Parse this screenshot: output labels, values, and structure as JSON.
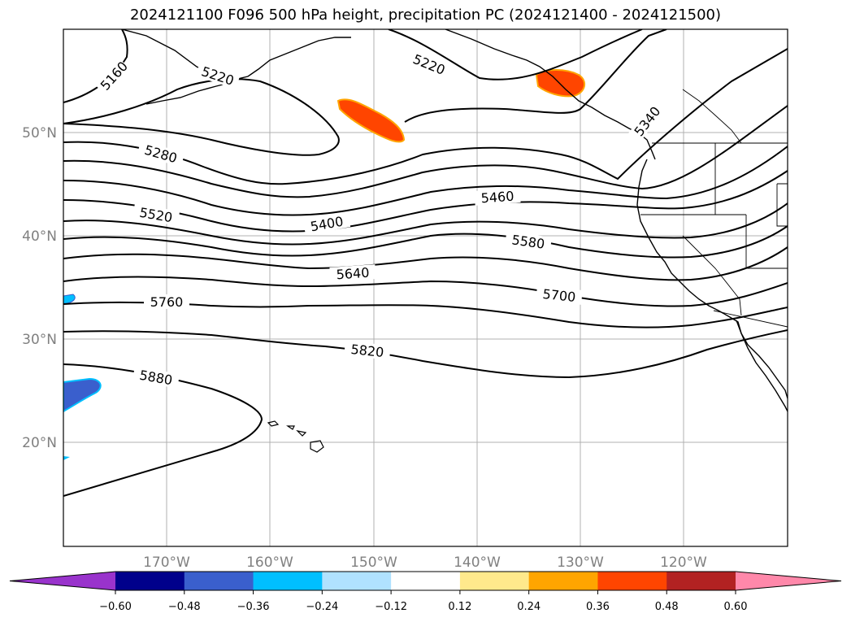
{
  "title": "2024121100 F096 500 hPa height, precipitation PC (2024121400 - 2024121500)",
  "lat_labels": [
    "50°N",
    "40°N",
    "30°N",
    "20°N"
  ],
  "lon_labels": [
    "170°W",
    "160°W",
    "150°W",
    "140°W",
    "130°W",
    "120°W"
  ],
  "contour_labels": [
    "5160",
    "5220",
    "5220",
    "5280",
    "5340",
    "5400",
    "5460",
    "5520",
    "5580",
    "5640",
    "5700",
    "5760",
    "5820",
    "5880"
  ],
  "colorbar": {
    "colors": [
      "#9933cc",
      "#00008b",
      "#3a5fcd",
      "#00bfff",
      "#b0e2ff",
      "#ffffff",
      "#ffe98c",
      "#ffa500",
      "#ff4500",
      "#b22222",
      "#ff88aa"
    ],
    "ticks": [
      "−0.60",
      "−0.48",
      "−0.36",
      "−0.24",
      "−0.12",
      "0.12",
      "0.24",
      "0.36",
      "0.48",
      "0.60"
    ]
  },
  "colors": {
    "contour": "#000000",
    "grid": "#b0b0b0",
    "tick_label": "#808080"
  }
}
